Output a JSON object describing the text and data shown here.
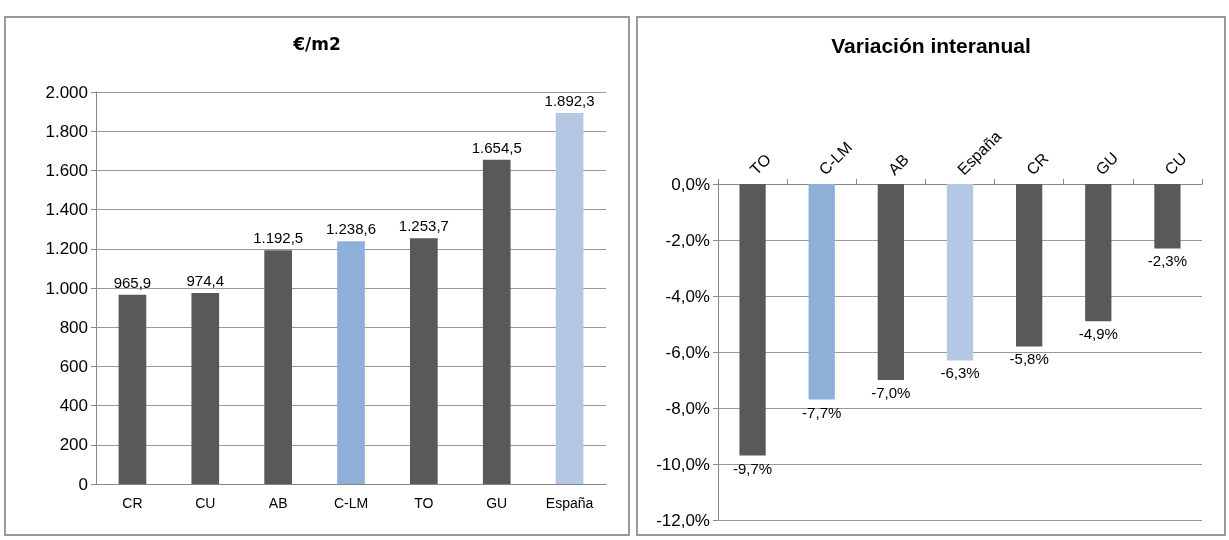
{
  "chart_data": [
    {
      "type": "bar",
      "title": "€/m2",
      "categories": [
        "CR",
        "CU",
        "AB",
        "C-LM",
        "TO",
        "GU",
        "España"
      ],
      "values": [
        965.9,
        974.4,
        1192.5,
        1238.6,
        1253.7,
        1654.5,
        1892.3
      ],
      "colors": [
        "#595959",
        "#595959",
        "#595959",
        "#8eb0d8",
        "#595959",
        "#595959",
        "#b4c8e4"
      ],
      "value_labels": [
        "965,9",
        "974,4",
        "1.192,5",
        "1.238,6",
        "1.253,7",
        "1.654,5",
        "1.892,3"
      ],
      "ylim": [
        0,
        2000
      ],
      "yticks": [
        0,
        200,
        400,
        600,
        800,
        {
          "value": 1000,
          "label": "1.000"
        },
        {
          "value": 1200,
          "label": "1.200"
        },
        {
          "value": 1400,
          "label": "1.400"
        },
        {
          "value": 1600,
          "label": "1.600"
        },
        {
          "value": 1800,
          "label": "1.800"
        },
        {
          "value": 2000,
          "label": "2.000"
        }
      ],
      "grid": "y"
    },
    {
      "type": "bar",
      "title": "Variación interanual",
      "categories": [
        "TO",
        "C-LM",
        "AB",
        "España",
        "CR",
        "GU",
        "CU"
      ],
      "values": [
        -9.7,
        -7.7,
        -7.0,
        -6.3,
        -5.8,
        -4.9,
        -2.3
      ],
      "colors": [
        "#595959",
        "#8eb0d8",
        "#595959",
        "#b4c8e4",
        "#595959",
        "#595959",
        "#595959"
      ],
      "value_labels": [
        "-9,7%",
        "-7,7%",
        "-7,0%",
        "-6,3%",
        "-5,8%",
        "-4,9%",
        "-2,3%"
      ],
      "ylim": [
        -12,
        0
      ],
      "yticks": [
        {
          "value": -12,
          "label": "-12,0%"
        },
        {
          "value": -10,
          "label": "-10,0%"
        },
        {
          "value": -8,
          "label": "-8,0%"
        },
        {
          "value": -6,
          "label": "-6,0%"
        },
        {
          "value": -4,
          "label": "-4,0%"
        },
        {
          "value": -2,
          "label": "-2,0%"
        },
        {
          "value": 0,
          "label": "0,0%"
        }
      ],
      "grid": "y"
    }
  ]
}
